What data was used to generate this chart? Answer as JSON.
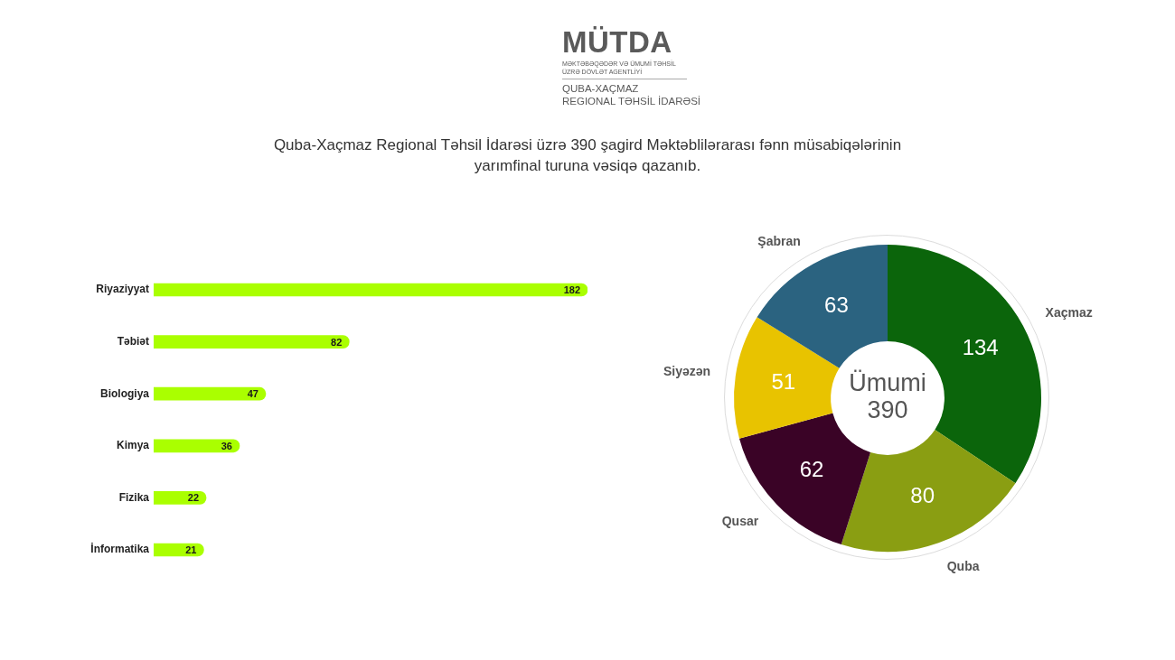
{
  "chart_data": [
    {
      "type": "bar",
      "orientation": "horizontal",
      "title": "Quba-Xaçmaz Regional Təhsil İdarəsi üzrə 390 şagird Məktəblilərarası fənn müsabiqələrinin yarımfinal turuna vəsiqə qazanıb.",
      "annotations": [
        "MÜTDA",
        "MƏKTƏBƏQƏDƏR VƏ ÜMUMİ TƏHSİL ÜZRƏ DÖVLƏT AGENTLİYİ",
        "QUBA-XAÇMAZ",
        "REGIONAL TƏHSİL İDARƏSİ"
      ],
      "categories": [
        "Riyaziyyat",
        "Təbiət",
        "Biologiya",
        "Kimya",
        "Fizika",
        "İnformatika"
      ],
      "values": [
        182,
        82,
        47,
        36,
        22,
        21
      ],
      "color": "#aaff00",
      "data_labels": true
    },
    {
      "type": "donut",
      "categories": [
        "Xaçmaz",
        "Quba",
        "Qusar",
        "Siyəzən",
        "Şabran"
      ],
      "values": [
        134,
        80,
        62,
        51,
        63
      ],
      "colors": [
        "#0b650b",
        "#8a9e12",
        "#3a0326",
        "#e8c300",
        "#2b6380"
      ],
      "data_labels": true,
      "annotations": [
        "Ümumi 390"
      ]
    }
  ]
}
